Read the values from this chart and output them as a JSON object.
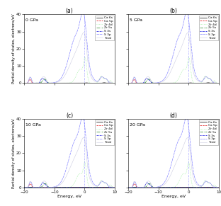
{
  "panels": [
    "(a)",
    "(b)",
    "(c)",
    "(d)"
  ],
  "pressures": [
    "0 GPa",
    "5 GPa",
    "10 GPa",
    "20 GPa"
  ],
  "ylabel": "Partial density of states, electrons/eV",
  "xlabel": "Energy, eV",
  "xlim": [
    -20,
    10
  ],
  "ylim": [
    0,
    40
  ],
  "yticks": [
    0,
    10,
    20,
    30,
    40
  ],
  "xticks": [
    -20,
    -10,
    0,
    10
  ],
  "legend_labels": [
    "Ca 6s",
    "Ca 5p",
    "Zr 4d",
    "Zr 5s",
    "S 3s",
    "S 3p",
    "Total"
  ],
  "line_colors": [
    "#000000",
    "#dd0000",
    "#90ee90",
    "#228822",
    "#0000dd",
    "#8888ff",
    "#aaaacc"
  ],
  "bg_color": "#ffffff"
}
